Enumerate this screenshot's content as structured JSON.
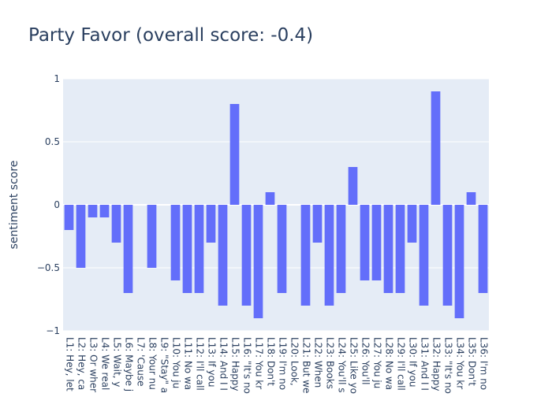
{
  "chart_data": {
    "type": "bar",
    "title": "Party Favor (overall score: -0.4)",
    "xlabel": "",
    "ylabel": "sentiment score",
    "ylim": [
      -1,
      1
    ],
    "yticks": [
      {
        "value": 1,
        "label": "1"
      },
      {
        "value": 0.5,
        "label": "0.5"
      },
      {
        "value": 0,
        "label": "0"
      },
      {
        "value": -0.5,
        "label": "−0.5"
      },
      {
        "value": -1,
        "label": "−1"
      }
    ],
    "grid": true,
    "bar_color": "#636efa",
    "plot_bg": "#e5ecf6",
    "categories": [
      "L1: Hey, let",
      "L2: Hey, ca",
      "L3: Or wher",
      "L4: We real",
      "L5: Wait, y",
      "L6: Maybe j",
      "L7: 'Cause",
      "L8: Your nu",
      "L9: \"Stay\" a",
      "L10: You ju",
      "L11: No wa",
      "L12: I'll call",
      "L13: If you",
      "L14: And I I",
      "L15: Happy",
      "L16: \"It's no",
      "L17: You kr",
      "L18: Don't",
      "L19: I'm no",
      "L20: Look,",
      "L21: But we",
      "L22: When",
      "L23: Books",
      "L24: You'll s",
      "L25: Like yo",
      "L26: You'll",
      "L27: You ju",
      "L28: No wa",
      "L29: I'll call",
      "L30: If you",
      "L31: And I I",
      "L32: Happy",
      "L33: \"It's no",
      "L34: You kr",
      "L35: Don't",
      "L36: I'm no"
    ],
    "values": [
      -0.2,
      -0.5,
      -0.1,
      -0.1,
      -0.3,
      -0.7,
      0,
      -0.5,
      0,
      -0.6,
      -0.7,
      -0.7,
      -0.3,
      -0.8,
      0.8,
      -0.8,
      -0.9,
      0.1,
      -0.7,
      0,
      -0.8,
      -0.3,
      -0.8,
      -0.7,
      0.3,
      -0.6,
      -0.6,
      -0.7,
      -0.7,
      -0.3,
      -0.8,
      0.9,
      -0.8,
      -0.9,
      0.1,
      -0.7
    ]
  }
}
